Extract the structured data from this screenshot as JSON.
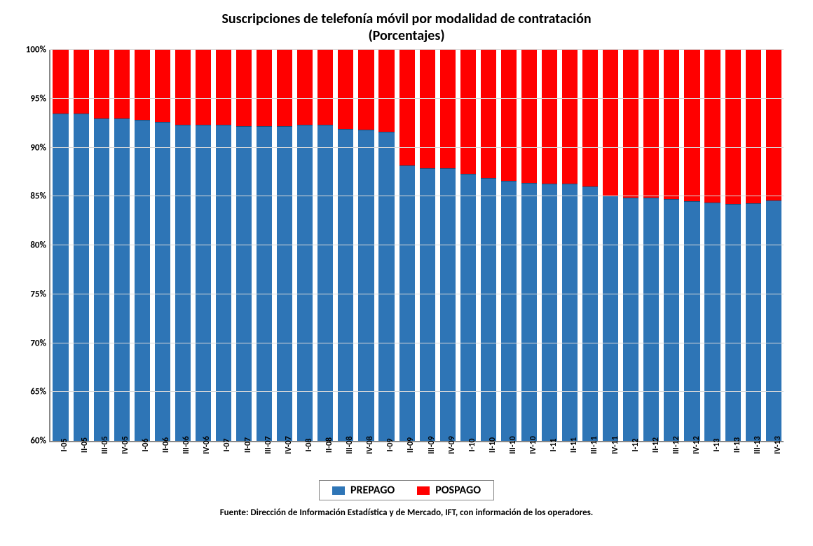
{
  "chart": {
    "type": "stacked-bar-100pct-truncated",
    "title_line1": "Suscripciones de telefonía móvil por modalidad de contratación",
    "title_line2": "(Porcentajes)",
    "title_fontsize": 20,
    "title_color": "#000000",
    "background_color": "#ffffff",
    "plot_background": "#ffffff",
    "grid_color": "#d9d9d9",
    "axis_line_color": "#878787",
    "ylim": [
      60,
      100
    ],
    "ytick_step": 5,
    "yticks": [
      60,
      65,
      70,
      75,
      80,
      85,
      90,
      95,
      100
    ],
    "ytick_suffix": "%",
    "ytick_fontsize": 13,
    "xtick_fontsize": 12,
    "xtick_rotation_deg": -90,
    "bar_gap_pct": 24,
    "categories": [
      "I-05",
      "II-05",
      "III-05",
      "IV-05",
      "I-06",
      "II-06",
      "III-06",
      "IV-06",
      "I-07",
      "II-07",
      "III-07",
      "IV-07",
      "I-08",
      "II-08",
      "III-08",
      "IV-08",
      "I-09",
      "II-09",
      "III-09",
      "IV-09",
      "I-10",
      "II-10",
      "III-10",
      "IV-10",
      "I-11",
      "II-11",
      "III-11",
      "IV-11",
      "I-12",
      "II-12",
      "III-12",
      "IV-12",
      "I-13",
      "II-13",
      "III-13",
      "IV-13"
    ],
    "series": [
      {
        "name": "PREPAGO",
        "color": "#2e75b6",
        "border_color": "#1f4e79",
        "values": [
          93.5,
          93.5,
          93.0,
          93.0,
          92.8,
          92.6,
          92.3,
          92.3,
          92.3,
          92.2,
          92.2,
          92.2,
          92.3,
          92.3,
          91.9,
          91.8,
          91.6,
          88.2,
          87.9,
          87.9,
          87.3,
          86.9,
          86.6,
          86.4,
          86.3,
          86.3,
          86.0,
          85.1,
          84.9,
          84.9,
          84.7,
          84.5,
          84.4,
          84.2,
          84.3,
          84.6
        ]
      },
      {
        "name": "POSPAGO",
        "color": "#ff0000",
        "border_color": "#c00000",
        "values": [
          6.5,
          6.5,
          7.0,
          7.0,
          7.2,
          7.4,
          7.7,
          7.7,
          7.7,
          7.8,
          7.8,
          7.8,
          7.7,
          7.7,
          8.1,
          8.2,
          8.4,
          11.8,
          12.1,
          12.1,
          12.7,
          13.1,
          13.4,
          13.6,
          13.7,
          13.7,
          14.0,
          14.9,
          15.1,
          15.1,
          15.3,
          15.5,
          15.6,
          15.8,
          15.7,
          15.4
        ]
      }
    ],
    "legend": {
      "position": "bottom",
      "border_color": "#878787",
      "fontsize": 16,
      "items": [
        {
          "label": "PREPAGO",
          "color": "#2e75b6"
        },
        {
          "label": "POSPAGO",
          "color": "#ff0000"
        }
      ]
    },
    "source_text": "Fuente: Dirección de Información Estadística y de Mercado, IFT, con información de los operadores.",
    "source_fontsize": 13
  }
}
